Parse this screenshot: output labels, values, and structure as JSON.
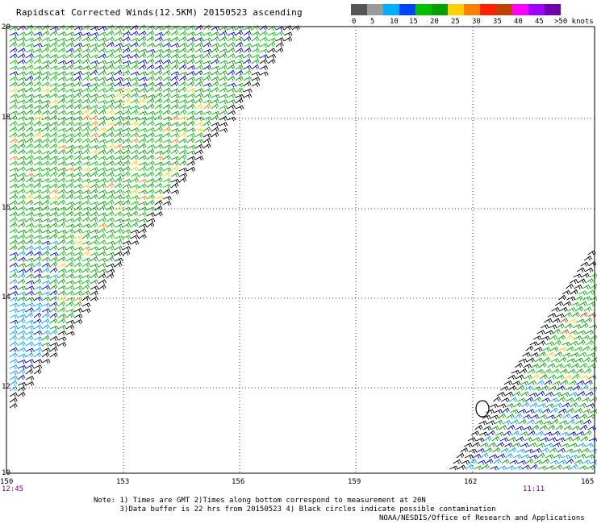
{
  "title": "Rapidscat Corrected Winds(12.5KM) 20150523 ascending",
  "legend": {
    "labels": [
      "0",
      "5",
      "10",
      "15",
      "20",
      "25",
      "30",
      "35",
      "40",
      "45",
      ">50 knots"
    ],
    "colors": [
      "#555555",
      "#9a9a9a",
      "#00b0ff",
      "#0040ff",
      "#00c000",
      "#00a000",
      "#ffd000",
      "#ff8000",
      "#ff2000",
      "#c04000",
      "#ff00ff",
      "#a000ff",
      "#7000b0"
    ]
  },
  "map": {
    "lat_labels": [
      "20",
      "18",
      "16",
      "14",
      "12",
      "10"
    ],
    "lon_labels": [
      "150",
      "153",
      "156",
      "159",
      "162",
      "165"
    ],
    "time_labels": [
      "12:45",
      "11:11"
    ]
  },
  "notes": {
    "line1": "Note: 1) Times are GMT 2)Times along bottom correspond to measurement at 20N",
    "line2": "      3)Data buffer is 22 hrs from 20150523 4) Black circles indicate possible contamination"
  },
  "credit": "NOAA/NESDIS/Office of Research and Applications"
}
